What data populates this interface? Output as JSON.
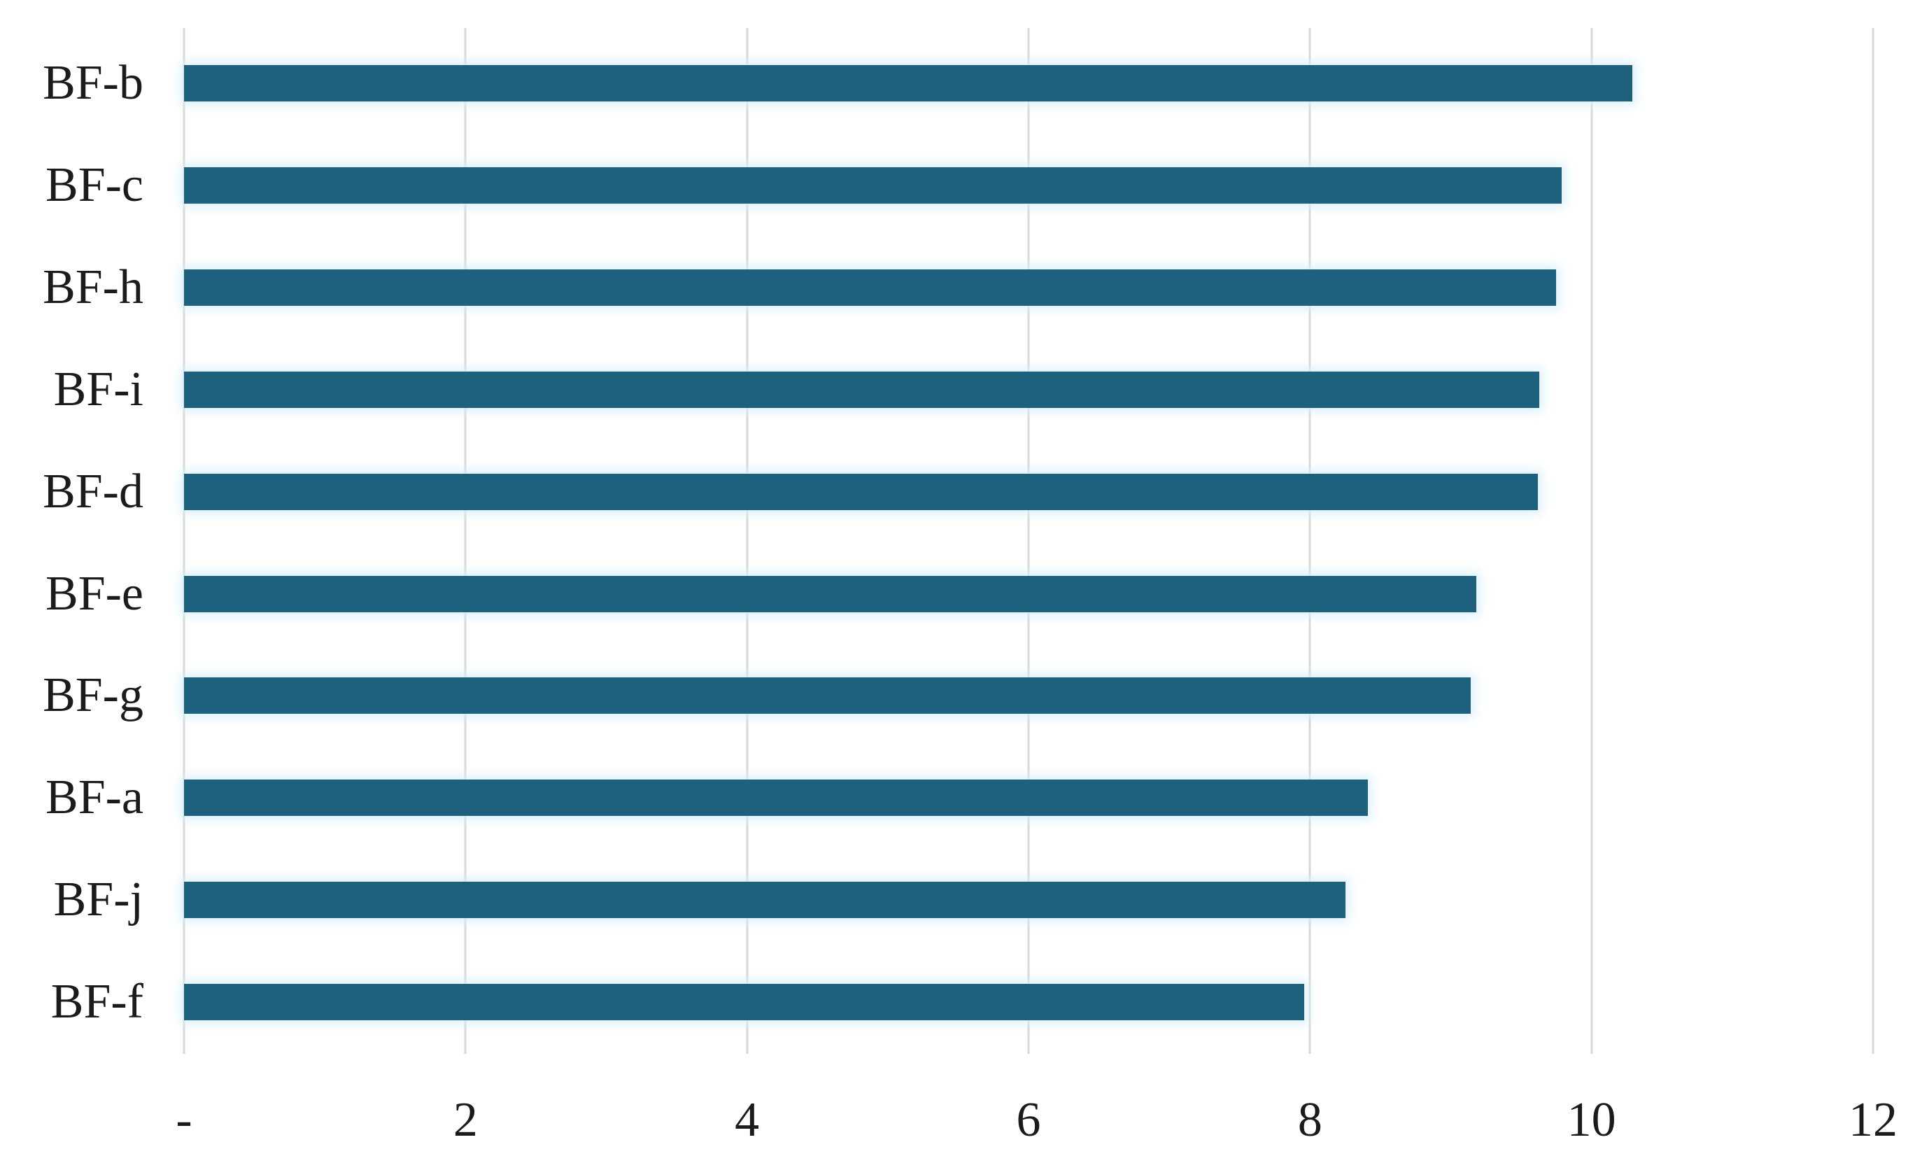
{
  "chart_data": {
    "type": "bar",
    "orientation": "horizontal",
    "title": "",
    "xlabel": "",
    "ylabel": "",
    "categories": [
      "BF-b",
      "BF-c",
      "BF-h",
      "BF-i",
      "BF-d",
      "BF-e",
      "BF-g",
      "BF-a",
      "BF-j",
      "BF-f"
    ],
    "values": [
      10.29,
      9.79,
      9.75,
      9.63,
      9.62,
      9.18,
      9.14,
      8.41,
      8.25,
      7.96
    ],
    "xlim": [
      0,
      12
    ],
    "x_ticks": [
      0,
      2,
      4,
      6,
      8,
      10,
      12
    ],
    "x_tick_labels": [
      "-",
      "2",
      "4",
      "6",
      "8",
      "10",
      "12"
    ],
    "grid": "vertical-only",
    "legend": "none",
    "bars_sorted_descending": true,
    "colors": {
      "bar": "#1E617F",
      "bar_glow": "#D6F0FB",
      "gridline": "#D9D9D9",
      "text": "#1B1B1B",
      "background": "#FFFFFF"
    }
  }
}
